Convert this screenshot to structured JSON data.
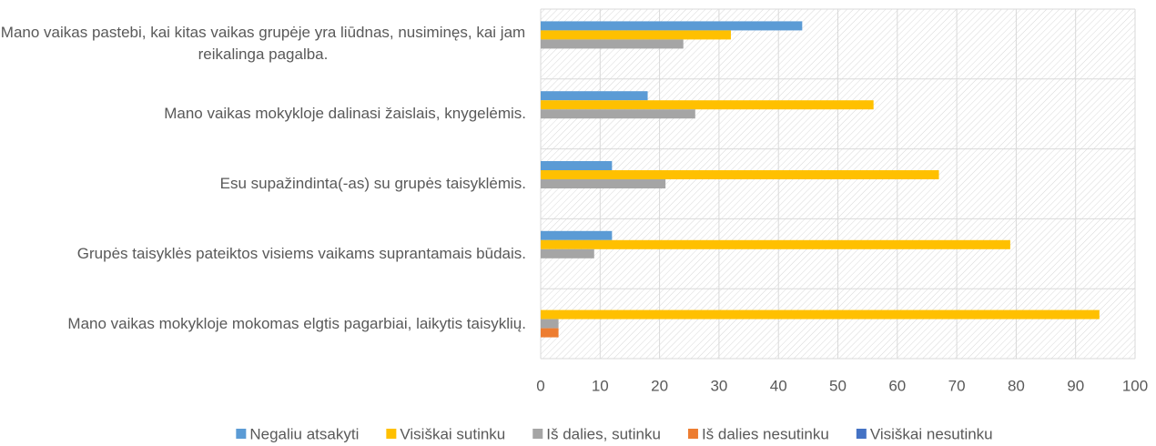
{
  "chart_data": {
    "type": "hbar",
    "categories": [
      "Mano vaikas pastebi, kai kitas vaikas grupėje yra liūdnas, nusiminęs, kai jam reikalinga pagalba.",
      "Mano vaikas mokykloje dalinasi žaislais, knygelėmis.",
      "Esu supažindinta(-as) su grupės taisyklėmis.",
      "Grupės taisyklės pateiktos visiems vaikams suprantamais būdais.",
      "Mano vaikas mokykloje mokomas elgtis pagarbiai, laikytis taisyklių."
    ],
    "series": [
      {
        "name": "Negaliu atsakyti",
        "color": "#5b9bd5",
        "values": [
          44,
          18,
          12,
          12,
          0
        ]
      },
      {
        "name": "Visiškai sutinku",
        "color": "#ffc000",
        "values": [
          32,
          56,
          67,
          79,
          94
        ]
      },
      {
        "name": "Iš dalies, sutinku",
        "color": "#a5a5a5",
        "values": [
          24,
          26,
          21,
          9,
          3
        ]
      },
      {
        "name": "Iš dalies nesutinku",
        "color": "#ed7d31",
        "values": [
          0,
          0,
          0,
          0,
          3
        ]
      },
      {
        "name": "Visiškai nesutinku",
        "color": "#4472c4",
        "values": [
          0,
          0,
          0,
          0,
          0
        ]
      }
    ],
    "xlim": [
      0,
      100
    ],
    "xticks": [
      0,
      10,
      20,
      30,
      40,
      50,
      60,
      70,
      80,
      90,
      100
    ],
    "grid": true
  }
}
